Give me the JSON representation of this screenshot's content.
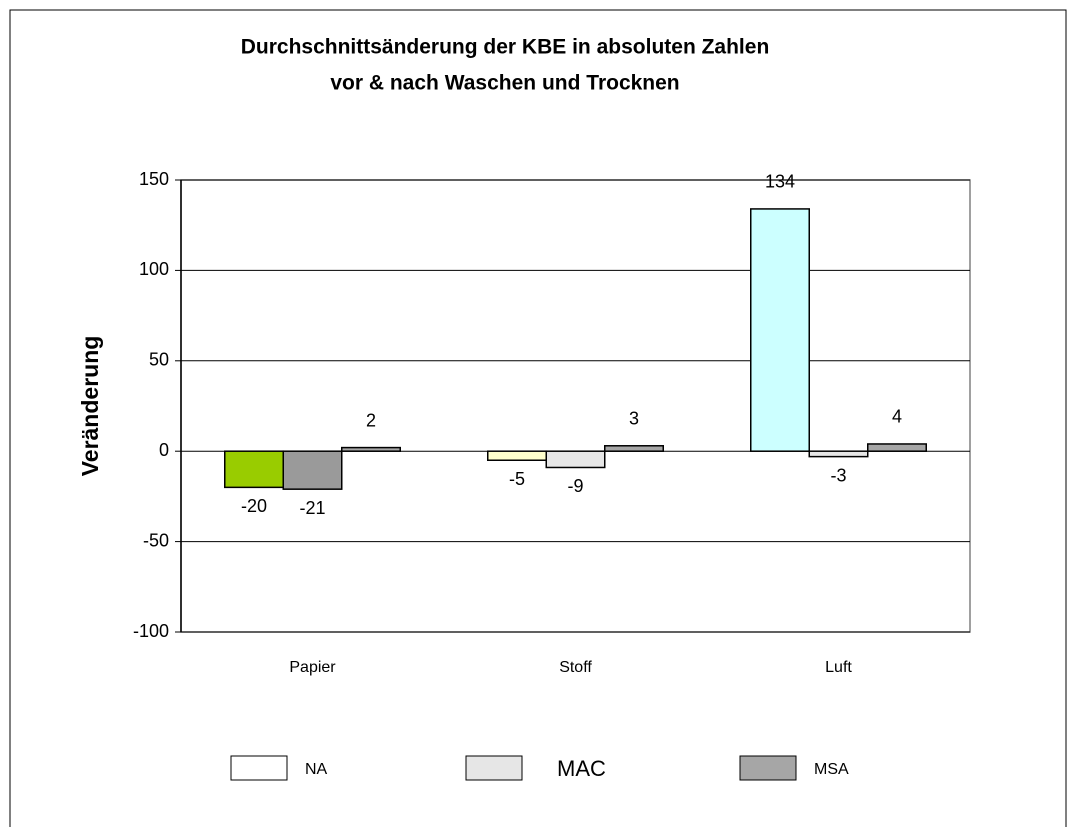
{
  "chart_data": {
    "type": "bar",
    "title": [
      "Durchschnittsänderung der KBE in absoluten Zahlen",
      "vor & nach Waschen und Trocknen"
    ],
    "y_label": "Veränderung",
    "categories": [
      "Papier",
      "Stoff",
      "Luft"
    ],
    "series": [
      {
        "name": "NA",
        "color": "#ffffff",
        "point_colors": [
          "#99cc00",
          "#ffffcc",
          "#ccffff"
        ],
        "values": [
          -20,
          -5,
          134
        ]
      },
      {
        "name": "MAC",
        "color": "#e6e6e6",
        "point_colors": [
          "#9a9a9a",
          "#e6e6e6",
          "#e6e6e6"
        ],
        "values": [
          -21,
          -9,
          -3
        ]
      },
      {
        "name": "MSA",
        "color": "#a6a6a6",
        "point_colors": [
          "#a6a6a6",
          "#a6a6a6",
          "#a6a6a6"
        ],
        "values": [
          2,
          3,
          4
        ]
      }
    ],
    "ylim": [
      -100,
      150
    ],
    "yticks": [
      -100,
      -50,
      0,
      50,
      100,
      150
    ],
    "grid": true,
    "legend": "bottom"
  }
}
